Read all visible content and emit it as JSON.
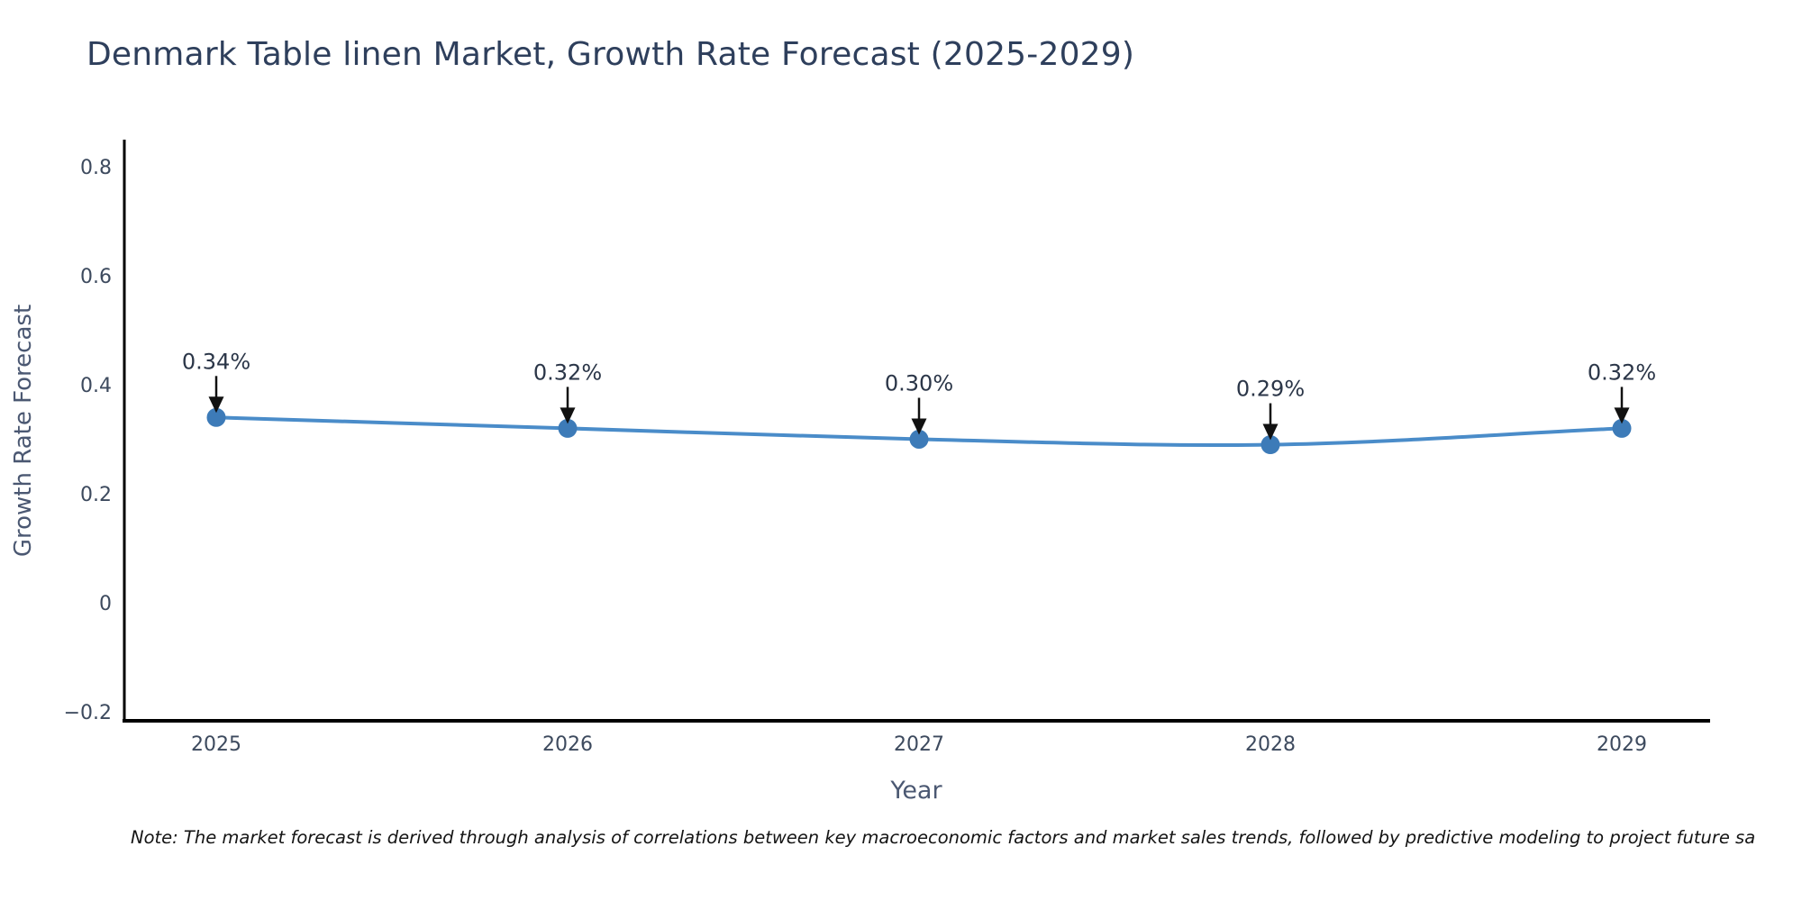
{
  "note": "Note: The market forecast is derived through analysis of correlations between key macroeconomic factors and market sales trends, followed by predictive modeling to project future sa",
  "chart_data": {
    "type": "line",
    "title": "Denmark Table linen Market, Growth Rate Forecast (2025-2029)",
    "xlabel": "Year",
    "ylabel": "Growth Rate Forecast",
    "categories": [
      "2025",
      "2026",
      "2027",
      "2028",
      "2029"
    ],
    "series": [
      {
        "name": "Growth Rate Forecast",
        "values": [
          0.34,
          0.32,
          0.3,
          0.29,
          0.32
        ]
      }
    ],
    "point_labels": [
      "0.34%",
      "0.32%",
      "0.30%",
      "0.29%",
      "0.32%"
    ],
    "yticks": [
      0.8,
      0.6,
      0.4,
      0.2,
      0,
      -0.2
    ],
    "ytick_labels": [
      "0.8",
      "0.6",
      "0.4",
      "0.2",
      "0",
      "−0.2"
    ],
    "ylim": [
      -0.215,
      0.845
    ],
    "grid": false,
    "legend": false,
    "colors": {
      "line": "#4a8cc9",
      "marker": "#3d7bb8",
      "axis": "#000000",
      "tick_text": "#3d4a5e",
      "axis_title_text": "#4b5872",
      "annotation_text": "#2b3648",
      "arrow": "#111111",
      "title_text": "#2e3f5c"
    }
  }
}
